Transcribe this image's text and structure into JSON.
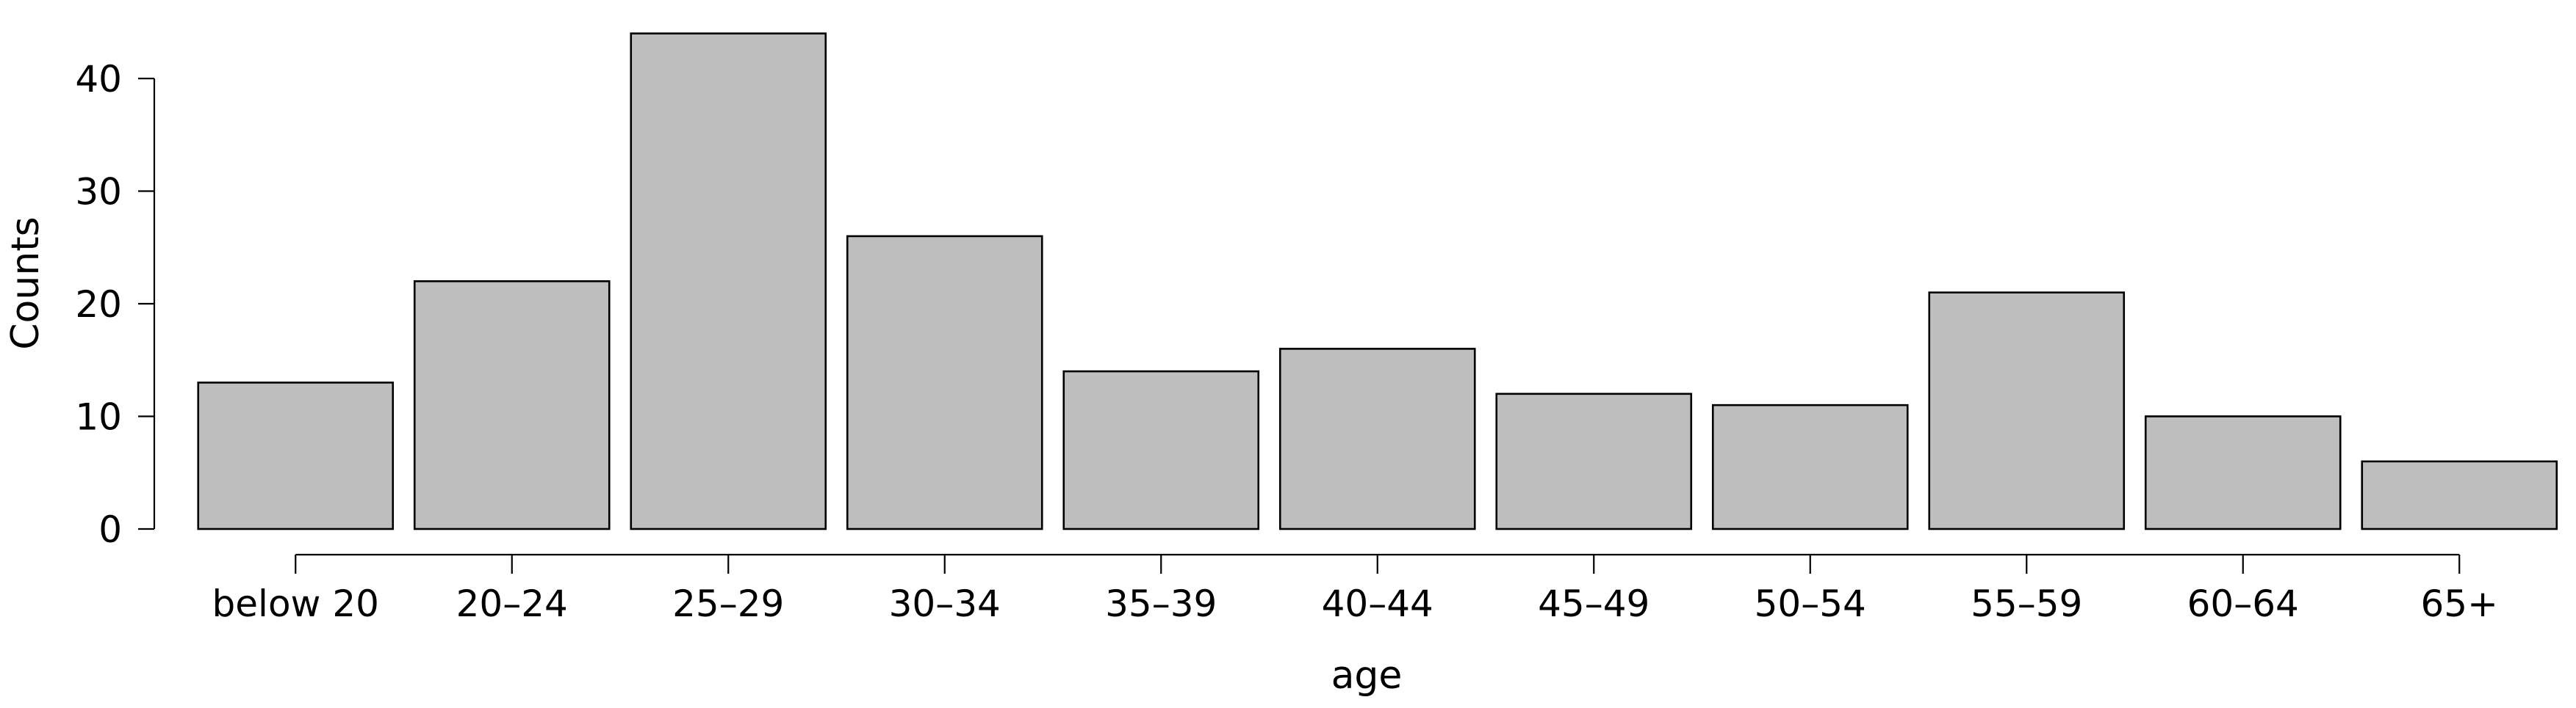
{
  "chart_data": {
    "type": "bar",
    "title": "",
    "xlabel": "age",
    "ylabel": "Counts",
    "categories": [
      "below 20",
      "20–24",
      "25–29",
      "30–34",
      "35–39",
      "40–44",
      "45–49",
      "50–54",
      "55–59",
      "60–64",
      "65+"
    ],
    "values": [
      13,
      22,
      44,
      26,
      14,
      16,
      12,
      11,
      21,
      10,
      6
    ],
    "ylim": [
      0,
      44
    ],
    "yticks": [
      0,
      10,
      20,
      30,
      40
    ],
    "grid": false,
    "legend": "none",
    "colors": {
      "bar_fill": "#bebebe",
      "bar_stroke": "#000000",
      "axis": "#000000",
      "background": "#ffffff"
    }
  }
}
